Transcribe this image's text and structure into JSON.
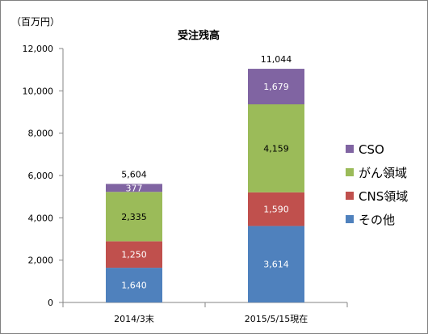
{
  "chart_data": {
    "type": "bar",
    "stacked": true,
    "title": "受注残高",
    "unit_label": "（百万円）",
    "categories": [
      "2014/3末",
      "2015/5/15現在"
    ],
    "series": [
      {
        "name": "その他",
        "values": [
          1640,
          3614
        ],
        "labels": [
          "1,640",
          "3,614"
        ],
        "color": "#4f81bd",
        "label_color": "#ffffff"
      },
      {
        "name": "CNS領域",
        "values": [
          1250,
          1590
        ],
        "labels": [
          "1,250",
          "1,590"
        ],
        "color": "#c0504d",
        "label_color": "#ffffff"
      },
      {
        "name": "がん領域",
        "values": [
          2335,
          4159
        ],
        "labels": [
          "2,335",
          "4,159"
        ],
        "color": "#9bbb59",
        "label_color": "#000000"
      },
      {
        "name": "CSO",
        "values": [
          377,
          1679
        ],
        "labels": [
          "377",
          "1,679"
        ],
        "color": "#8064a2",
        "label_color": "#ffffff"
      }
    ],
    "totals": [
      5604,
      11044
    ],
    "total_labels": [
      "5,604",
      "11,044"
    ],
    "ylim": [
      0,
      12000
    ],
    "yticks": [
      0,
      2000,
      4000,
      6000,
      8000,
      10000,
      12000
    ],
    "ytick_labels": [
      "0",
      "2,000",
      "4,000",
      "6,000",
      "8,000",
      "10,000",
      "12,000"
    ],
    "legend_position": "right",
    "legend_order": [
      "CSO",
      "がん領域",
      "CNS領域",
      "その他"
    ],
    "grid": false,
    "axis_color": "#868686"
  }
}
